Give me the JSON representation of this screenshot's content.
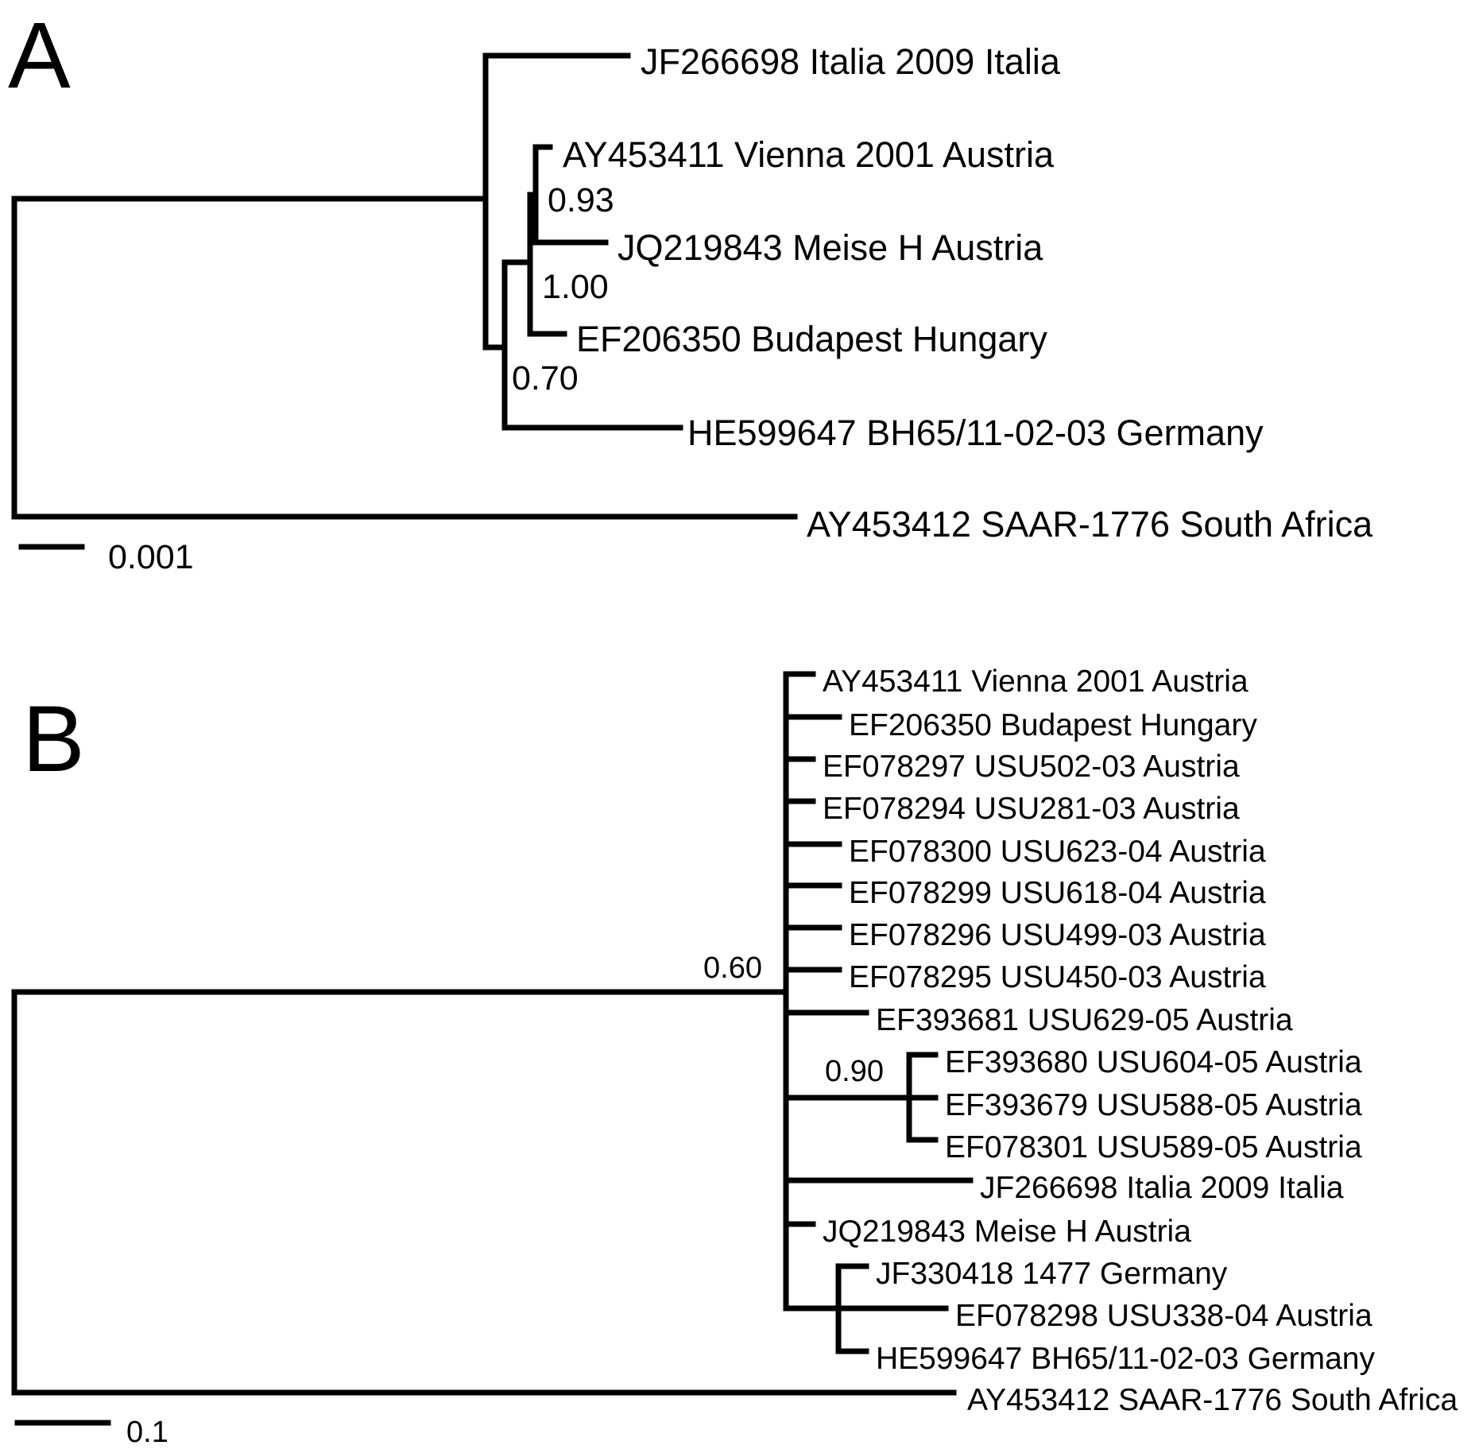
{
  "panel_a": {
    "letter": "A",
    "leaves": [
      "JF266698 Italia 2009 Italia",
      "AY453411 Vienna 2001 Austria",
      "JQ219843 Meise H Austria",
      "EF206350 Budapest Hungary",
      "HE599647 BH65/11-02-03 Germany",
      "AY453412 SAAR-1776 South Africa"
    ],
    "support_values": [
      "0.93",
      "1.00",
      "0.70"
    ],
    "scale_bar_label": "0.001"
  },
  "panel_b": {
    "letter": "B",
    "leaves": [
      "AY453411 Vienna 2001 Austria",
      "EF206350 Budapest Hungary",
      "EF078297 USU502-03 Austria",
      "EF078294 USU281-03 Austria",
      "EF078300 USU623-04 Austria",
      "EF078299 USU618-04 Austria",
      "EF078296 USU499-03 Austria",
      "EF078295 USU450-03 Austria",
      "EF393681 USU629-05 Austria",
      "EF393680 USU604-05 Austria",
      "EF393679 USU588-05 Austria",
      "EF078301 USU589-05 Austria",
      "JF266698 Italia 2009 Italia",
      "JQ219843 Meise H Austria",
      "JF330418 1477 Germany",
      "EF078298 USU338-04 Austria",
      "HE599647 BH65/11-02-03 Germany",
      "AY453412 SAAR-1776 South Africa"
    ],
    "support_values": [
      "0.60",
      "0.90"
    ],
    "scale_bar_label": "0.1"
  }
}
